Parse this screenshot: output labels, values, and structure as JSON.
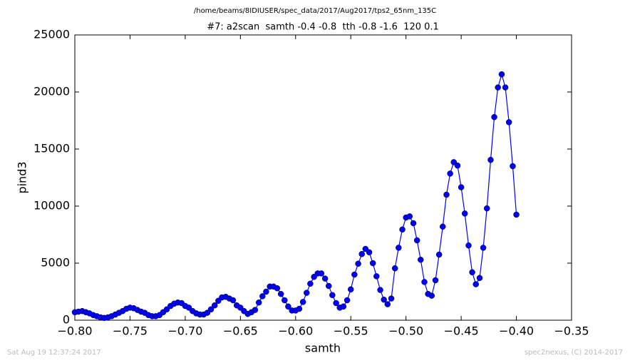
{
  "chart_data": {
    "type": "line",
    "title": "/home/beams/8IDIUSER/spec_data/2017/Aug2017/tps2_65nm_135C",
    "subtitle": "#7: a2scan  samth -0.4 -0.8  tth -0.8 -1.6  120 0.1",
    "x_label": "samth",
    "y_label": "pind3",
    "footer_left": "Sat Aug 19 12:37:24 2017",
    "footer_right": "spec2nexus, (C) 2014-2017",
    "color": "#0000ff",
    "x": [
      -0.8,
      -0.7967,
      -0.7933,
      -0.79,
      -0.7867,
      -0.7833,
      -0.78,
      -0.7767,
      -0.7733,
      -0.77,
      -0.7667,
      -0.7633,
      -0.76,
      -0.7567,
      -0.7533,
      -0.75,
      -0.7467,
      -0.7433,
      -0.74,
      -0.7367,
      -0.7333,
      -0.73,
      -0.7267,
      -0.7233,
      -0.72,
      -0.7167,
      -0.7133,
      -0.71,
      -0.7067,
      -0.7033,
      -0.7,
      -0.6967,
      -0.6933,
      -0.69,
      -0.6867,
      -0.6833,
      -0.68,
      -0.6767,
      -0.6733,
      -0.67,
      -0.6667,
      -0.6633,
      -0.66,
      -0.6567,
      -0.6533,
      -0.65,
      -0.6467,
      -0.6433,
      -0.64,
      -0.6367,
      -0.6333,
      -0.63,
      -0.6267,
      -0.6233,
      -0.62,
      -0.6167,
      -0.6133,
      -0.61,
      -0.6067,
      -0.6033,
      -0.6,
      -0.5967,
      -0.5933,
      -0.59,
      -0.5867,
      -0.5833,
      -0.58,
      -0.5767,
      -0.5733,
      -0.57,
      -0.5667,
      -0.5633,
      -0.56,
      -0.5567,
      -0.5533,
      -0.55,
      -0.5467,
      -0.5433,
      -0.54,
      -0.5367,
      -0.5333,
      -0.53,
      -0.5267,
      -0.5233,
      -0.52,
      -0.5167,
      -0.5133,
      -0.51,
      -0.5067,
      -0.5033,
      -0.5,
      -0.4967,
      -0.4933,
      -0.49,
      -0.4867,
      -0.4833,
      -0.48,
      -0.4767,
      -0.4733,
      -0.47,
      -0.4667,
      -0.4633,
      -0.46,
      -0.4567,
      -0.4533,
      -0.45,
      -0.4467,
      -0.4433,
      -0.44,
      -0.4367,
      -0.4333,
      -0.43,
      -0.4267,
      -0.4233,
      -0.42,
      -0.4167,
      -0.4133,
      -0.41,
      -0.4067,
      -0.4033,
      -0.4
    ],
    "values": [
      700,
      750,
      800,
      700,
      600,
      450,
      350,
      250,
      200,
      250,
      350,
      500,
      650,
      800,
      1000,
      1100,
      1050,
      900,
      750,
      650,
      450,
      350,
      350,
      450,
      700,
      950,
      1250,
      1450,
      1550,
      1500,
      1250,
      1100,
      800,
      600,
      500,
      500,
      650,
      950,
      1300,
      1700,
      2000,
      2050,
      1900,
      1750,
      1300,
      1100,
      800,
      550,
      700,
      900,
      1550,
      2100,
      2500,
      2950,
      2950,
      2800,
      2300,
      1750,
      1200,
      850,
      850,
      1000,
      1600,
      2400,
      3200,
      3800,
      4100,
      4100,
      3650,
      3000,
      2200,
      1500,
      1100,
      1200,
      1750,
      2700,
      4000,
      4950,
      5800,
      6250,
      5950,
      5000,
      3850,
      2650,
      1800,
      1400,
      1900,
      4550,
      6350,
      7950,
      9000,
      9100,
      8500,
      7000,
      5300,
      3350,
      2300,
      2150,
      3500,
      5750,
      8200,
      11000,
      12850,
      13850,
      13550,
      11650,
      9350,
      6550,
      4200,
      3150,
      3700,
      6350,
      9800,
      14050,
      17800,
      20400,
      21550,
      20400,
      17350,
      13500,
      9250
    ],
    "xlim": [
      -0.8,
      -0.35
    ],
    "xticks": [
      {
        "value": -0.8,
        "label": "−0.80"
      },
      {
        "value": -0.75,
        "label": "−0.75"
      },
      {
        "value": -0.7,
        "label": "−0.70"
      },
      {
        "value": -0.65,
        "label": "−0.65"
      },
      {
        "value": -0.6,
        "label": "−0.60"
      },
      {
        "value": -0.55,
        "label": "−0.55"
      },
      {
        "value": -0.5,
        "label": "−0.50"
      },
      {
        "value": -0.45,
        "label": "−0.45"
      },
      {
        "value": -0.4,
        "label": "−0.40"
      },
      {
        "value": -0.35,
        "label": "−0.35"
      }
    ],
    "ylim": [
      0,
      25000
    ],
    "yticks": [
      0,
      5000,
      10000,
      15000,
      20000,
      25000
    ]
  }
}
